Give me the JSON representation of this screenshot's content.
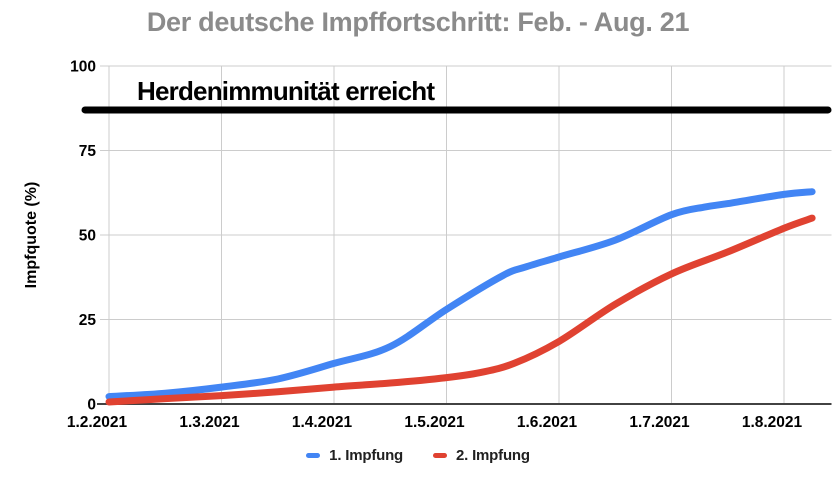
{
  "chart_data": {
    "type": "line",
    "title": "Der deutsche Impffortschritt: Feb. - Aug. 21",
    "xlabel": "",
    "ylabel": "Impfquote (%)",
    "ylim": [
      0,
      100
    ],
    "y_ticks": [
      0,
      25,
      50,
      75,
      100
    ],
    "x_tick_labels": [
      "1.2.2021",
      "1.3.2021",
      "1.4.2021",
      "1.5.2021",
      "1.6.2021",
      "1.7.2021",
      "1.8.2021"
    ],
    "grid": true,
    "legend_position": "bottom",
    "annotation": {
      "text": "Herdenimmunität erreicht",
      "value": 87,
      "color": "#000000"
    },
    "series": [
      {
        "name": "1. Impfung",
        "color": "#4285f4",
        "x_months_from_feb1": [
          0,
          0.5,
          1,
          1.5,
          2,
          2.5,
          3,
          3.5,
          3.7,
          4,
          4.5,
          5,
          5.3,
          5.5,
          6,
          6.25
        ],
        "values": [
          2.2,
          3.2,
          5,
          7.4,
          12,
          17,
          28,
          38,
          40.5,
          43.5,
          48.5,
          56,
          58.3,
          59.3,
          62,
          62.8
        ]
      },
      {
        "name": "2. Impfung",
        "color": "#e04231",
        "x_months_from_feb1": [
          0,
          0.5,
          1,
          1.5,
          2,
          2.5,
          3,
          3.3,
          3.6,
          4,
          4.5,
          5,
          5.5,
          6,
          6.25
        ],
        "values": [
          0.6,
          1.6,
          2.5,
          3.6,
          5,
          6.2,
          7.8,
          9.3,
          12,
          18.5,
          29.5,
          38.5,
          45,
          52,
          55
        ]
      }
    ],
    "legend": [
      {
        "label": "1. Impfung",
        "color": "#4285f4"
      },
      {
        "label": "2. Impfung",
        "color": "#e04231"
      }
    ],
    "colors": {
      "title_text": "#8b8b8b",
      "gridline": "#cccccc",
      "x_axis_line": "#424242",
      "tick_text": "#000000",
      "annotation_line": "#000000"
    }
  }
}
